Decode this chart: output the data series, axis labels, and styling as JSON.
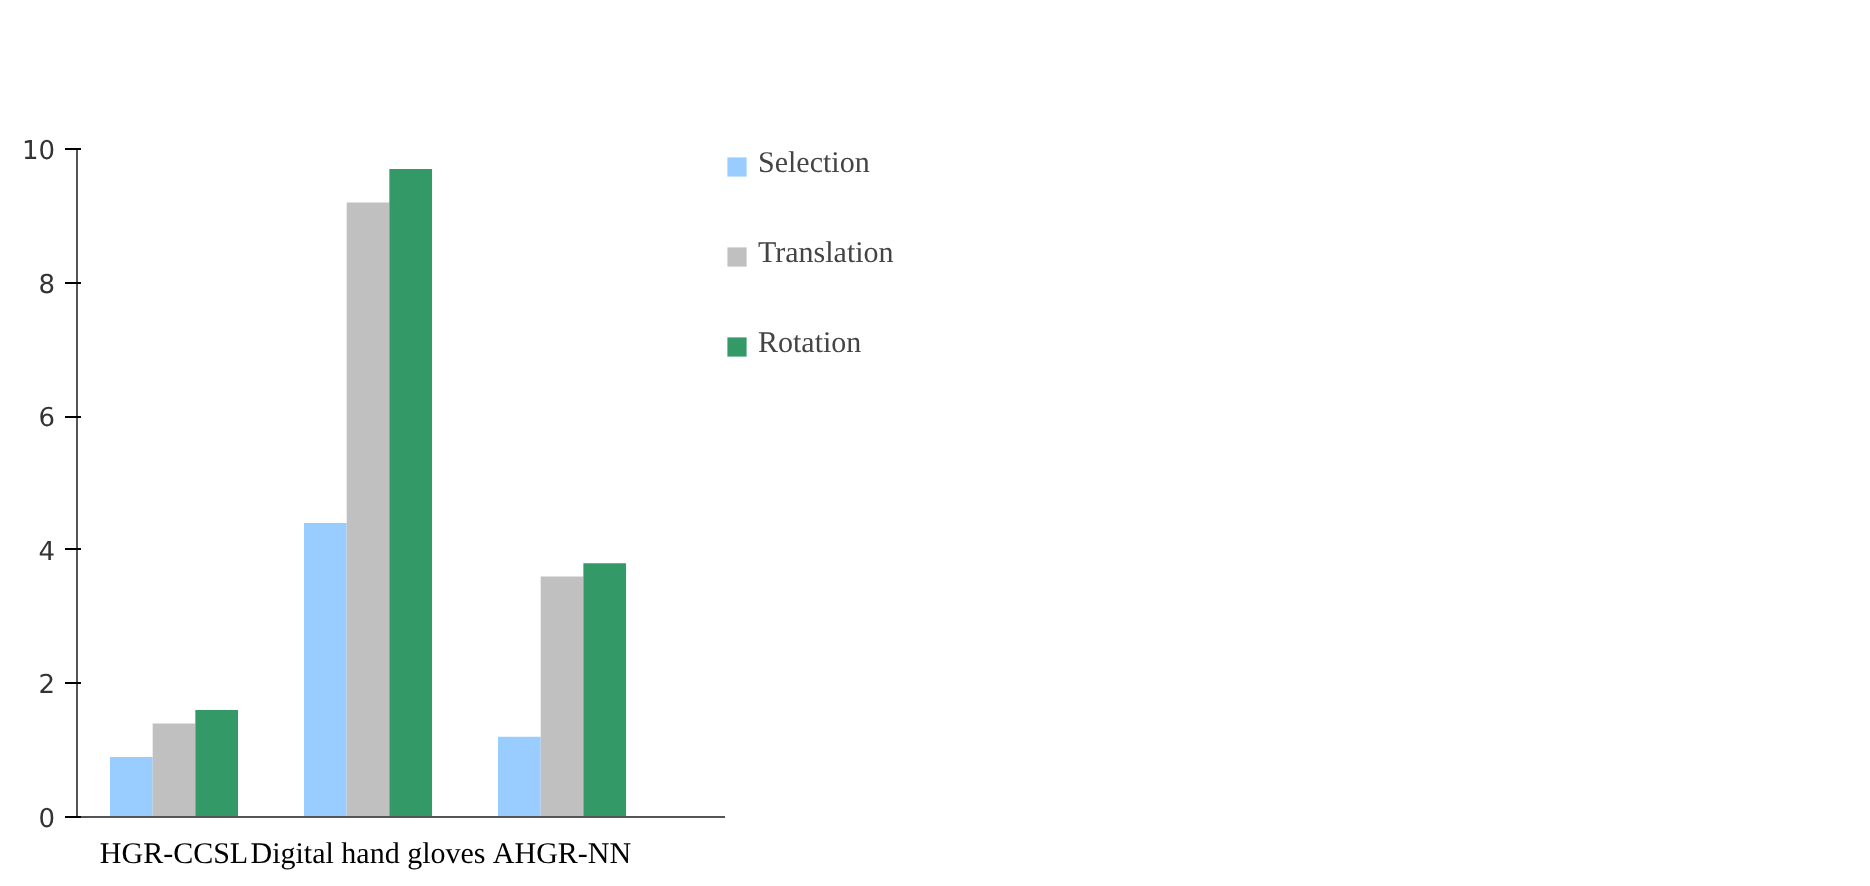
{
  "chart_data": {
    "type": "bar",
    "categories": [
      "HGR-CCSL",
      "Digital hand gloves",
      "AHGR-NN"
    ],
    "series": [
      {
        "name": "Selection",
        "color": "#99ccff",
        "values": [
          0.9,
          4.4,
          1.2
        ]
      },
      {
        "name": "Translation",
        "color": "#c0c0c0",
        "values": [
          1.4,
          9.2,
          3.6
        ]
      },
      {
        "name": "Rotation",
        "color": "#339966",
        "values": [
          1.6,
          9.7,
          3.8
        ]
      }
    ],
    "ylim": [
      0,
      10
    ],
    "yticks": [
      0,
      2,
      4,
      6,
      8,
      10
    ],
    "legend": "right"
  }
}
